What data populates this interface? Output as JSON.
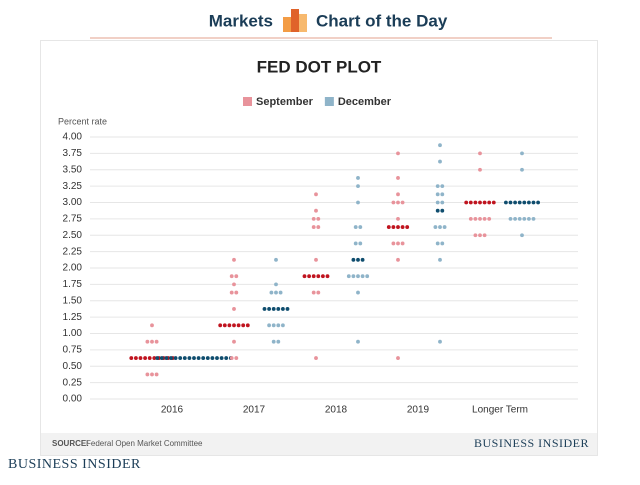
{
  "header": {
    "left": "Markets",
    "right": "Chart of the Day"
  },
  "brand": "Business Insider",
  "chart_data": {
    "type": "dotplot",
    "title": "FED DOT PLOT",
    "ylabel": "Percent rate",
    "categories": [
      "2016",
      "2017",
      "2018",
      "2019",
      "Longer Term"
    ],
    "ylim": [
      0,
      4
    ],
    "yticks": [
      {
        "value": 0,
        "label": "0.00"
      },
      {
        "value": 0.25,
        "label": "0.25"
      },
      {
        "value": 0.5,
        "label": "0.50"
      },
      {
        "value": 0.75,
        "label": "0.75"
      },
      {
        "value": 1,
        "label": "1.00"
      },
      {
        "value": 1.25,
        "label": "1.25"
      },
      {
        "value": 1.5,
        "label": "1.50"
      },
      {
        "value": 1.75,
        "label": "1.75"
      },
      {
        "value": 2,
        "label": "2.00"
      },
      {
        "value": 2.25,
        "label": "2.25"
      },
      {
        "value": 2.5,
        "label": "2.50"
      },
      {
        "value": 2.75,
        "label": "2.75"
      },
      {
        "value": 3,
        "label": "3.00"
      },
      {
        "value": 3.25,
        "label": "3.25"
      },
      {
        "value": 3.5,
        "label": "3.50"
      },
      {
        "value": 3.75,
        "label": "3.75"
      },
      {
        "value": 4,
        "label": "4.00"
      }
    ],
    "grid": true,
    "series": [
      {
        "name": "September",
        "color": "#e8939b",
        "median_color": "#c0141f",
        "medians": [
          0.625,
          1.125,
          1.875,
          2.625,
          3.0
        ],
        "values": [
          [
            0.375,
            0.625,
            0.875,
            1.125
          ],
          [
            0.625,
            0.875,
            1.125,
            1.375,
            1.625,
            1.75,
            1.875,
            2.125
          ],
          [
            0.625,
            1.625,
            1.875,
            2.125,
            2.625,
            2.75,
            2.875,
            3.125
          ],
          [
            0.625,
            2.125,
            2.375,
            2.625,
            2.75,
            3.0,
            3.125,
            3.375,
            3.75
          ],
          [
            2.5,
            2.75,
            3.0,
            3.5,
            3.75
          ]
        ],
        "counts": [
          [
            3,
            10,
            3,
            1
          ],
          [
            2,
            1,
            7,
            1,
            2,
            1,
            2,
            1
          ],
          [
            1,
            2,
            6,
            1,
            2,
            2,
            1,
            1
          ],
          [
            1,
            1,
            3,
            5,
            1,
            3,
            1,
            1,
            1
          ],
          [
            3,
            5,
            7,
            1,
            1
          ]
        ]
      },
      {
        "name": "December",
        "color": "#8fb4c9",
        "median_color": "#0f4d6e",
        "medians": [
          0.625,
          1.375,
          2.125,
          2.875,
          3.0
        ],
        "values": [
          [
            0.625
          ],
          [
            0.875,
            1.125,
            1.375,
            1.625,
            1.75,
            2.125
          ],
          [
            0.875,
            1.625,
            1.875,
            2.125,
            2.375,
            2.625,
            3.0,
            3.25,
            3.375
          ],
          [
            0.875,
            2.125,
            2.375,
            2.625,
            2.875,
            3.0,
            3.125,
            3.25,
            3.625,
            3.875
          ],
          [
            2.5,
            2.75,
            3.0,
            3.5,
            3.75
          ]
        ],
        "counts": [
          [
            17
          ],
          [
            2,
            4,
            6,
            3,
            1,
            1
          ],
          [
            1,
            1,
            5,
            3,
            2,
            2,
            1,
            1,
            1
          ],
          [
            1,
            1,
            2,
            3,
            2,
            2,
            2,
            2,
            1,
            1
          ],
          [
            1,
            6,
            8,
            1,
            1
          ]
        ]
      }
    ],
    "source_label": "SOURCE:",
    "source": "Federal Open Market Committee"
  }
}
